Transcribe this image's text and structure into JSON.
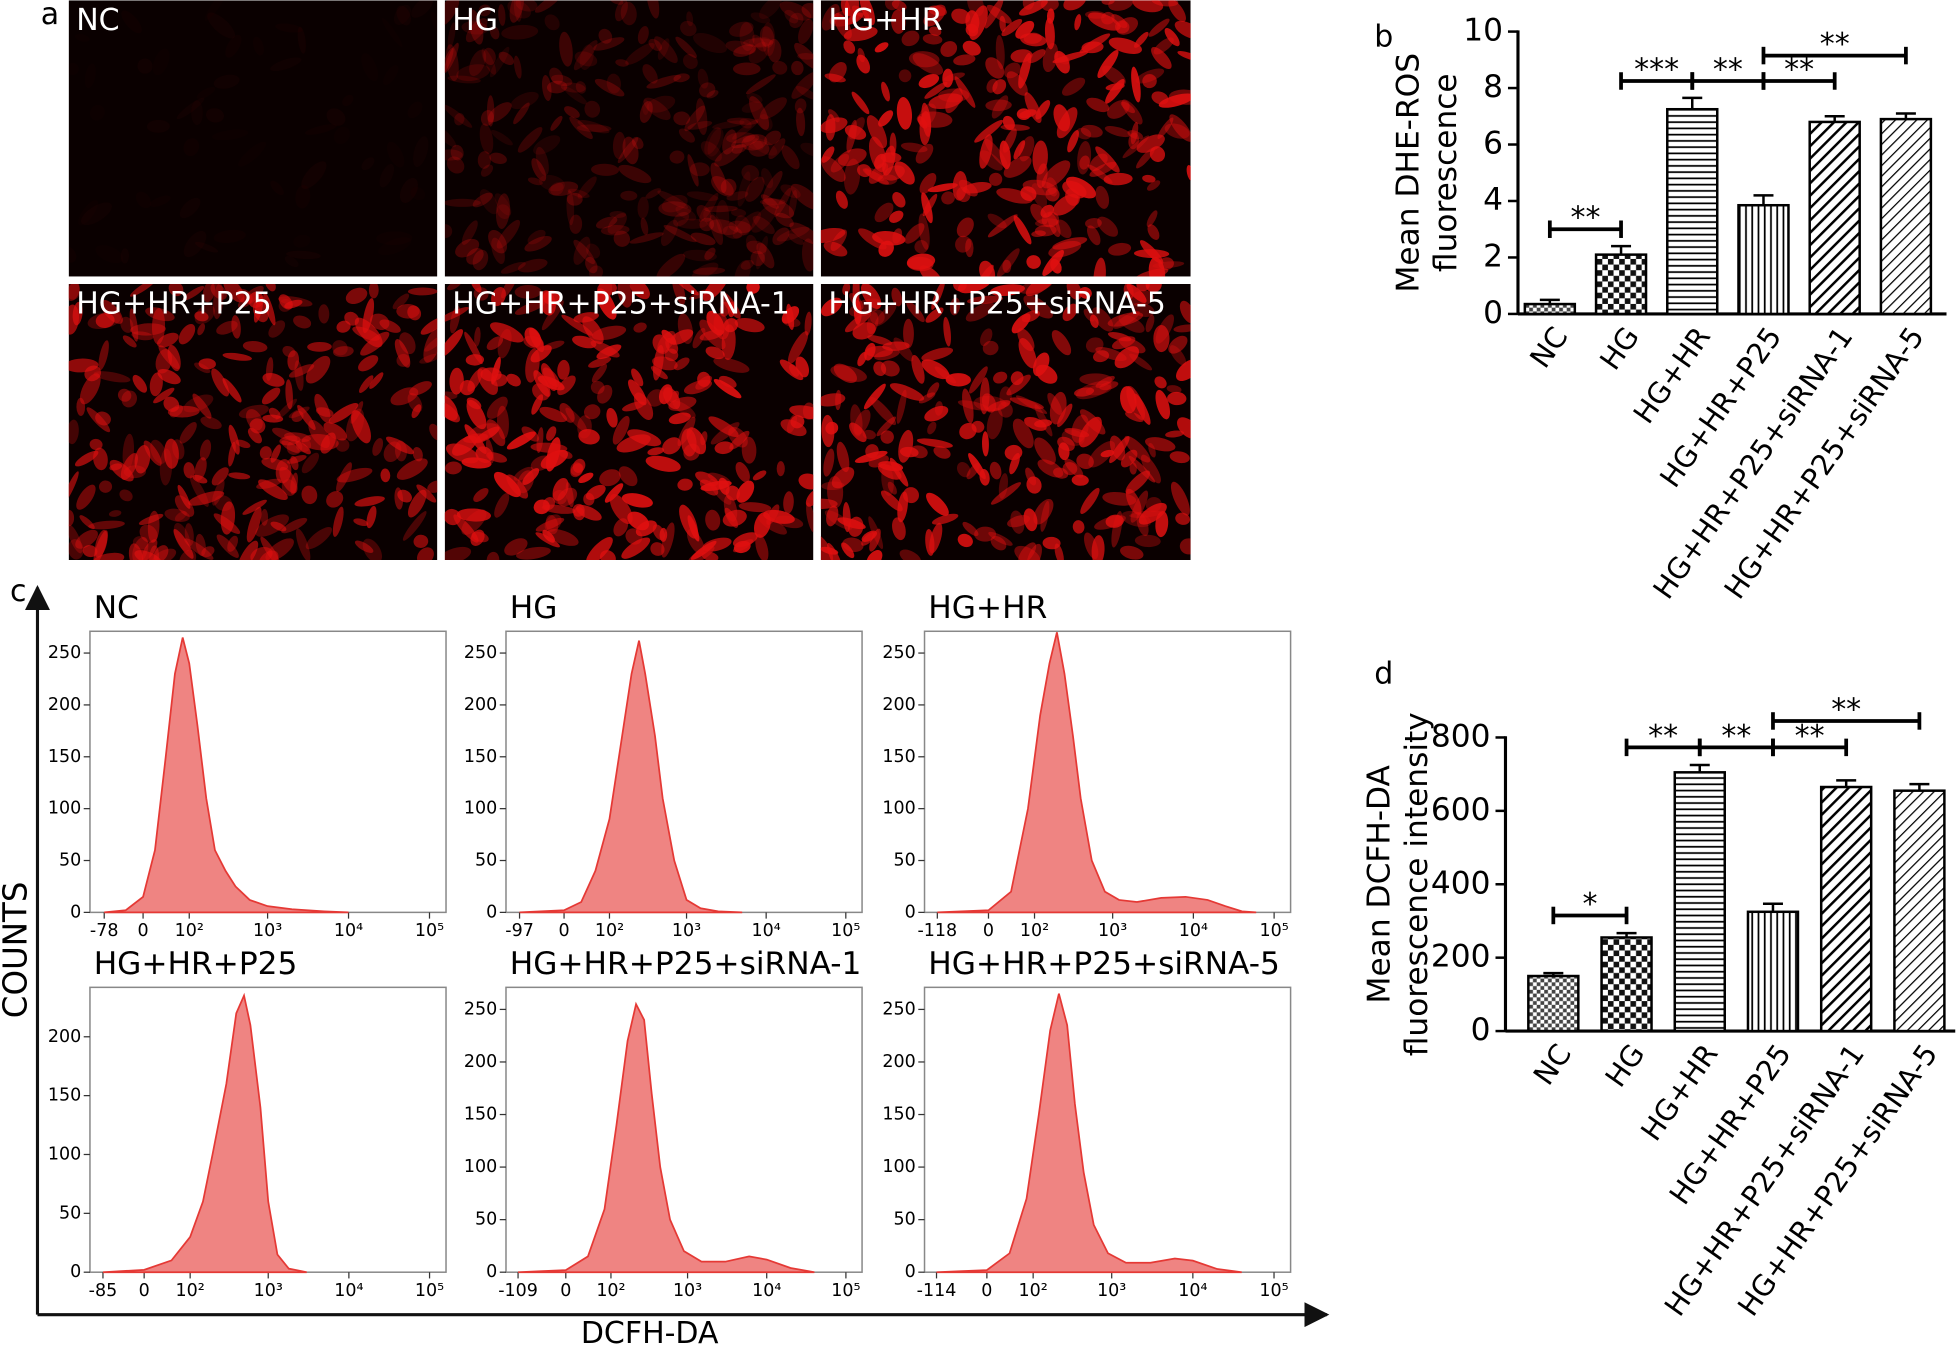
{
  "panel_a": {
    "label": "a",
    "images": [
      "NC",
      "HG",
      "HG+HR",
      "HG+HR+P25",
      "HG+HR+P25+siRNA-1",
      "HG+HR+P25+siRNA-5"
    ]
  },
  "panel_c": {
    "label": "c",
    "ylabel": "COUNTS",
    "xlabel": "DCFH-DA"
  },
  "chart_data": [
    {
      "type": "bar",
      "panel_label": "b",
      "ylabel": [
        "Mean DHE-ROS",
        "fluorescence"
      ],
      "categories": [
        "NC",
        "HG",
        "HG+HR",
        "HG+HR+P25",
        "HG+HR+P25+siRNA-1",
        "HG+HR+P25+siRNA-5"
      ],
      "values": [
        0.35,
        2.1,
        7.25,
        3.85,
        6.8,
        6.9
      ],
      "errors": [
        0.15,
        0.3,
        0.4,
        0.35,
        0.2,
        0.2
      ],
      "ylim": [
        0,
        10
      ],
      "yticks": [
        0,
        2,
        4,
        6,
        8,
        10
      ],
      "comparisons": [
        {
          "from": "NC",
          "to": "HG",
          "label": "**"
        },
        {
          "from": "HG",
          "to": "HG+HR",
          "label": "***"
        },
        {
          "from": "HG+HR",
          "to": "HG+HR+P25",
          "label": "**"
        },
        {
          "from": "HG+HR+P25",
          "to": "HG+HR+P25+siRNA-1",
          "label": "**"
        },
        {
          "from": "HG+HR+P25",
          "to": "HG+HR+P25+siRNA-5",
          "label": "**"
        }
      ]
    },
    {
      "type": "bar",
      "panel_label": "d",
      "ylabel": [
        "Mean DCFH-DA",
        "fluorescence intensity"
      ],
      "categories": [
        "NC",
        "HG",
        "HG+HR",
        "HG+HR+P25",
        "HG+HR+P25+siRNA-1",
        "HG+HR+P25+siRNA-5"
      ],
      "values": [
        150,
        255,
        705,
        325,
        665,
        655
      ],
      "errors": [
        8,
        12,
        20,
        22,
        18,
        18
      ],
      "ylim": [
        0,
        800
      ],
      "yticks": [
        0,
        200,
        400,
        600,
        800
      ],
      "comparisons": [
        {
          "from": "NC",
          "to": "HG",
          "label": "*"
        },
        {
          "from": "HG",
          "to": "HG+HR",
          "label": "**"
        },
        {
          "from": "HG+HR",
          "to": "HG+HR+P25",
          "label": "**"
        },
        {
          "from": "HG+HR+P25",
          "to": "HG+HR+P25+siRNA-1",
          "label": "**"
        },
        {
          "from": "HG+HR+P25",
          "to": "HG+HR+P25+siRNA-5",
          "label": "**"
        }
      ]
    },
    {
      "type": "area",
      "title": "NC",
      "color": "#e53935",
      "xscale": "asinh",
      "x": [
        -78,
        -30,
        0,
        20,
        40,
        60,
        80,
        100,
        130,
        170,
        220,
        300,
        400,
        600,
        1000,
        2000,
        5000,
        10000
      ],
      "values": [
        0,
        2,
        15,
        60,
        150,
        230,
        265,
        240,
        180,
        110,
        60,
        40,
        25,
        12,
        6,
        3,
        1,
        0
      ],
      "xlim": [
        -125,
        160000
      ],
      "xticks": [
        -78,
        0,
        {
          "value": 100,
          "label": "10²"
        },
        {
          "value": 1000,
          "label": "10³"
        },
        {
          "value": 10000,
          "label": "10⁴"
        },
        {
          "value": 100000,
          "label": "10⁵"
        }
      ],
      "ylim": [
        0,
        271
      ],
      "yticks": [
        0,
        50,
        100,
        150,
        200,
        250
      ]
    },
    {
      "type": "area",
      "title": "HG",
      "color": "#e53935",
      "xscale": "asinh",
      "x": [
        -97,
        0,
        30,
        60,
        100,
        150,
        200,
        250,
        300,
        400,
        500,
        700,
        1000,
        1500,
        2500,
        5000
      ],
      "values": [
        0,
        2,
        10,
        40,
        90,
        170,
        230,
        262,
        230,
        170,
        110,
        50,
        12,
        4,
        1,
        0
      ],
      "xlim": [
        -150,
        160000
      ],
      "xticks": [
        -97,
        0,
        {
          "value": 100,
          "label": "10²"
        },
        {
          "value": 1000,
          "label": "10³"
        },
        {
          "value": 10000,
          "label": "10⁴"
        },
        {
          "value": 100000,
          "label": "10⁵"
        }
      ],
      "ylim": [
        0,
        271
      ],
      "yticks": [
        0,
        50,
        100,
        150,
        200,
        250
      ]
    },
    {
      "type": "area",
      "title": "HG+HR",
      "color": "#e53935",
      "xscale": "asinh",
      "x": [
        -118,
        0,
        40,
        80,
        120,
        160,
        200,
        250,
        320,
        400,
        550,
        800,
        1200,
        2000,
        4000,
        8000,
        15000,
        25000,
        40000,
        60000
      ],
      "values": [
        0,
        2,
        20,
        100,
        190,
        240,
        270,
        230,
        170,
        110,
        50,
        20,
        12,
        10,
        14,
        15,
        12,
        6,
        1,
        0
      ],
      "xlim": [
        -175,
        160000
      ],
      "xticks": [
        -118,
        0,
        {
          "value": 100,
          "label": "10²"
        },
        {
          "value": 1000,
          "label": "10³"
        },
        {
          "value": 10000,
          "label": "10⁴"
        },
        {
          "value": 100000,
          "label": "10⁵"
        }
      ],
      "ylim": [
        0,
        271
      ],
      "yticks": [
        0,
        50,
        100,
        150,
        200,
        250
      ]
    },
    {
      "type": "area",
      "title": "HG+HR+P25",
      "color": "#e53935",
      "xscale": "asinh",
      "x": [
        -85,
        0,
        50,
        100,
        150,
        200,
        300,
        400,
        500,
        600,
        800,
        1000,
        1300,
        1800,
        3000
      ],
      "values": [
        0,
        2,
        10,
        30,
        60,
        100,
        160,
        220,
        235,
        210,
        140,
        60,
        15,
        3,
        0
      ],
      "xlim": [
        -130,
        160000
      ],
      "xticks": [
        -85,
        0,
        {
          "value": 100,
          "label": "10²"
        },
        {
          "value": 1000,
          "label": "10³"
        },
        {
          "value": 10000,
          "label": "10⁴"
        },
        {
          "value": 100000,
          "label": "10⁵"
        }
      ],
      "ylim": [
        0,
        242
      ],
      "yticks": [
        0,
        50,
        100,
        150,
        200
      ]
    },
    {
      "type": "area",
      "title": "HG+HR+P25+siRNA-1",
      "color": "#e53935",
      "xscale": "asinh",
      "x": [
        -109,
        0,
        40,
        80,
        120,
        170,
        220,
        280,
        350,
        450,
        600,
        900,
        1500,
        3000,
        6000,
        10000,
        20000,
        40000
      ],
      "values": [
        0,
        2,
        15,
        60,
        140,
        220,
        255,
        240,
        170,
        100,
        50,
        20,
        10,
        10,
        15,
        12,
        4,
        0
      ],
      "xlim": [
        -160,
        160000
      ],
      "xticks": [
        -109,
        0,
        {
          "value": 100,
          "label": "10²"
        },
        {
          "value": 1000,
          "label": "10³"
        },
        {
          "value": 10000,
          "label": "10⁴"
        },
        {
          "value": 100000,
          "label": "10⁵"
        }
      ],
      "ylim": [
        0,
        271
      ],
      "yticks": [
        0,
        50,
        100,
        150,
        200,
        250
      ]
    },
    {
      "type": "area",
      "title": "HG+HR+P25+siRNA-5",
      "color": "#e53935",
      "xscale": "asinh",
      "x": [
        -114,
        0,
        40,
        80,
        120,
        170,
        220,
        280,
        350,
        450,
        600,
        900,
        1500,
        3000,
        6000,
        10000,
        20000,
        40000
      ],
      "values": [
        0,
        2,
        18,
        70,
        150,
        230,
        265,
        235,
        160,
        95,
        45,
        18,
        9,
        9,
        13,
        11,
        3,
        0
      ],
      "xlim": [
        -165,
        160000
      ],
      "xticks": [
        -114,
        0,
        {
          "value": 100,
          "label": "10²"
        },
        {
          "value": 1000,
          "label": "10³"
        },
        {
          "value": 10000,
          "label": "10⁴"
        },
        {
          "value": 100000,
          "label": "10⁵"
        }
      ],
      "ylim": [
        0,
        271
      ],
      "yticks": [
        0,
        50,
        100,
        150,
        200,
        250
      ]
    }
  ]
}
